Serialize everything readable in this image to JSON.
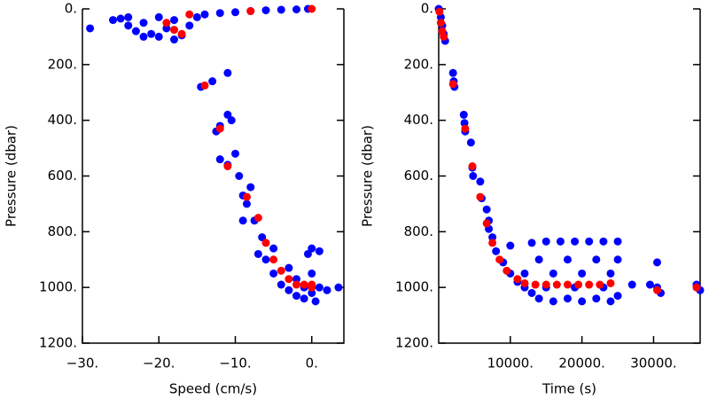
{
  "chart_data": [
    {
      "type": "scatter",
      "x_label": "Speed (cm/s)",
      "y_label": "Pressure (dbar)",
      "xlim": [
        -30,
        4.2
      ],
      "ylim": [
        1200,
        0
      ],
      "xticks": [
        {
          "value": -30,
          "label": "−30."
        },
        {
          "value": -20,
          "label": "−20."
        },
        {
          "value": -10,
          "label": "−10."
        },
        {
          "value": 0,
          "label": "0."
        }
      ],
      "yticks": [
        {
          "value": 0,
          "label": "0."
        },
        {
          "value": 200,
          "label": "200."
        },
        {
          "value": 400,
          "label": "400."
        },
        {
          "value": 600,
          "label": "600."
        },
        {
          "value": 800,
          "label": "800."
        },
        {
          "value": 1000,
          "label": "1000."
        },
        {
          "value": 1200,
          "label": "1200."
        }
      ],
      "series": [
        {
          "color": "#0000ff",
          "x": [
            -29,
            -26,
            -25,
            -24,
            -23,
            -22,
            -21,
            -20,
            -19,
            -18,
            -17,
            -16,
            -15,
            -14,
            -12,
            -10,
            -8,
            -6,
            -4,
            -2,
            -0.5,
            -20,
            -18,
            -22,
            -24,
            -14.5,
            -13,
            -11,
            -12,
            -11,
            -10.5,
            -12.5,
            -11,
            -10,
            -9.5,
            -12,
            -9,
            -8,
            -8.5,
            -7.5,
            -9,
            -6.5,
            -7,
            -5,
            -6,
            -5,
            -3,
            -2,
            -1,
            0,
            1,
            2,
            -1,
            0.5,
            -2,
            1,
            0,
            -0.5,
            3.5,
            -4,
            0,
            -3
          ],
          "values": [
            70,
            40,
            35,
            60,
            80,
            50,
            90,
            100,
            70,
            40,
            95,
            60,
            30,
            20,
            15,
            12,
            8,
            5,
            3,
            2,
            0,
            30,
            110,
            100,
            30,
            280,
            260,
            230,
            420,
            380,
            400,
            440,
            560,
            520,
            600,
            540,
            670,
            640,
            700,
            760,
            760,
            820,
            880,
            860,
            900,
            950,
            930,
            970,
            1000,
            1020,
            1000,
            1010,
            1040,
            1050,
            1030,
            870,
            860,
            880,
            1000,
            990,
            950,
            1010
          ]
        },
        {
          "color": "#ff0000",
          "x": [
            -19,
            -18,
            -17,
            -16,
            -8,
            0,
            -14,
            -12,
            -11,
            -8.5,
            -7,
            -6,
            -5,
            -4,
            -3,
            -2,
            -1,
            0,
            0
          ],
          "values": [
            50,
            75,
            90,
            20,
            8,
            0,
            275,
            430,
            565,
            675,
            750,
            840,
            900,
            940,
            970,
            990,
            990,
            990,
            1000
          ]
        }
      ]
    },
    {
      "type": "scatter",
      "x_label": "Time (s)",
      "y_label": "Pressure (dbar)",
      "xlim": [
        0,
        36500
      ],
      "ylim": [
        1200,
        0
      ],
      "xticks": [
        {
          "value": 10000,
          "label": "10000."
        },
        {
          "value": 20000,
          "label": "20000."
        },
        {
          "value": 30000,
          "label": "30000."
        }
      ],
      "yticks": [
        {
          "value": 0,
          "label": "0."
        },
        {
          "value": 200,
          "label": "200."
        },
        {
          "value": 400,
          "label": "400."
        },
        {
          "value": 600,
          "label": "600."
        },
        {
          "value": 800,
          "label": "800."
        },
        {
          "value": 1000,
          "label": "1000."
        },
        {
          "value": 1200,
          "label": "1200."
        }
      ],
      "series": [
        {
          "color": "#0000ff",
          "x": [
            0,
            300,
            500,
            700,
            900,
            2000,
            2200,
            2100,
            3500,
            3700,
            3600,
            4500,
            4700,
            4800,
            5800,
            6000,
            6700,
            7000,
            7500,
            8000,
            9000,
            10000,
            11000,
            12000,
            13000,
            14000,
            16000,
            18000,
            20000,
            22000,
            24000,
            25000,
            13000,
            15000,
            17000,
            19000,
            21000,
            23000,
            25000,
            14000,
            18000,
            22000,
            25000,
            12000,
            16000,
            20000,
            24000,
            15000,
            19000,
            23000,
            27000,
            30500,
            30500,
            31000,
            29500,
            36000,
            36500,
            7000,
            10000
          ],
          "values": [
            0,
            30,
            60,
            90,
            115,
            230,
            280,
            260,
            380,
            440,
            410,
            480,
            570,
            600,
            620,
            680,
            720,
            790,
            820,
            870,
            910,
            950,
            980,
            1000,
            1020,
            1040,
            1050,
            1040,
            1050,
            1040,
            1050,
            1030,
            840,
            835,
            835,
            835,
            835,
            835,
            835,
            900,
            900,
            900,
            900,
            950,
            950,
            950,
            950,
            1000,
            1000,
            1000,
            990,
            910,
            1000,
            1020,
            990,
            990,
            1010,
            760,
            850
          ]
        },
        {
          "color": "#ff0000",
          "x": [
            100,
            300,
            500,
            700,
            2000,
            3700,
            4700,
            5800,
            6700,
            7500,
            8500,
            9500,
            11000,
            12000,
            13500,
            15000,
            16500,
            18000,
            19500,
            21000,
            22500,
            24000,
            30500,
            36000
          ],
          "values": [
            10,
            50,
            80,
            100,
            270,
            430,
            565,
            675,
            770,
            840,
            900,
            940,
            970,
            985,
            990,
            990,
            990,
            990,
            990,
            990,
            990,
            985,
            1010,
            1000
          ]
        }
      ]
    }
  ]
}
